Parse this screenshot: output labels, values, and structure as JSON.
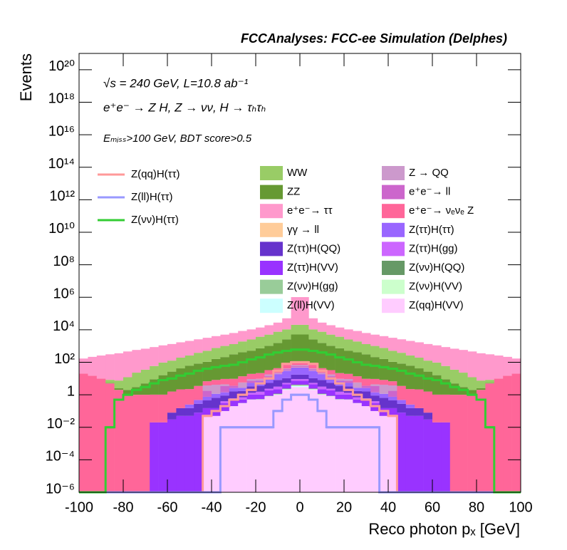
{
  "chart_data": {
    "type": "stacked_histogram",
    "title": "FCCAnalyses: FCC-ee Simulation (Delphes)",
    "annotations": [
      "√s = 240 GeV, L=10.8 ab⁻¹",
      "e⁺e⁻ → Z H, Z → νν, H → τₕτₕ",
      "Eₘᵢₛₛ>100 GeV, BDT score>0.5"
    ],
    "x_label": "Reco photon pₓ [GeV]",
    "y_label": "Events",
    "log_y": true,
    "stacked": true,
    "xlim": [
      -100,
      100
    ],
    "ylim": [
      1e-06,
      1e+21
    ],
    "xticks": [
      -100,
      -80,
      -60,
      -40,
      -20,
      0,
      20,
      40,
      60,
      80,
      100
    ],
    "yticks": [
      {
        "value": 1e-06,
        "label": "10⁻⁶"
      },
      {
        "value": 0.0001,
        "label": "10⁻⁴"
      },
      {
        "value": 0.01,
        "label": "10⁻²"
      },
      1,
      {
        "value": 100,
        "label": "10²"
      },
      {
        "value": 10000,
        "label": "10⁴"
      },
      {
        "value": 1000000,
        "label": "10⁶"
      },
      {
        "value": 100000000.0,
        "label": "10⁸"
      },
      {
        "value": 10000000000.0,
        "label": "10¹⁰"
      },
      {
        "value": 1000000000000.0,
        "label": "10¹²"
      },
      {
        "value": 100000000000000.0,
        "label": "10¹⁴"
      },
      {
        "value": 1e+16,
        "label": "10¹⁶"
      },
      {
        "value": 1e+18,
        "label": "10¹⁸"
      },
      {
        "value": 1e+20,
        "label": "10²⁰"
      }
    ],
    "bins": [
      -100,
      -96,
      -92,
      -88,
      -84,
      -80,
      -76,
      -72,
      -68,
      -64,
      -60,
      -56,
      -52,
      -48,
      -44,
      -40,
      -36,
      -32,
      -28,
      -24,
      -20,
      -16,
      -12,
      -8,
      -4,
      0,
      4,
      8,
      12,
      16,
      20,
      24,
      28,
      32,
      36,
      40,
      44,
      48,
      52,
      56,
      60,
      64,
      68,
      72,
      76,
      80,
      84,
      88,
      92,
      96,
      100
    ],
    "series": [
      {
        "name": "Z(qq)H(VV)",
        "color": "#ffccff",
        "values": [
          0,
          0,
          0,
          0,
          0,
          0,
          0,
          0,
          0,
          0,
          0,
          0,
          0,
          0,
          0.05,
          0.05,
          0.1,
          0.2,
          0.3,
          0.5,
          0.5,
          0.8,
          1,
          2,
          3,
          3,
          2,
          1,
          0.8,
          0.5,
          0.5,
          0.3,
          0.2,
          0.1,
          0.05,
          0.05,
          0,
          0,
          0,
          0,
          0,
          0,
          0,
          0,
          0,
          0,
          0,
          0,
          0,
          0
        ]
      },
      {
        "name": "Z(ll)H(VV)",
        "color": "#ccffff",
        "values": [
          0,
          0,
          0,
          0,
          0,
          0,
          0,
          0,
          0,
          0,
          0,
          0,
          0,
          0,
          0,
          0,
          0,
          0,
          0,
          0,
          0,
          0,
          0.02,
          0.1,
          0.5,
          0.5,
          0.1,
          0.02,
          0,
          0,
          0,
          0,
          0,
          0,
          0,
          0,
          0,
          0,
          0,
          0,
          0,
          0,
          0,
          0,
          0,
          0,
          0,
          0,
          0,
          0
        ]
      },
      {
        "name": "Z(νν)H(VV)",
        "color": "#ccffcc",
        "values": [
          0,
          0,
          0,
          0,
          0,
          0,
          0,
          0,
          0,
          0,
          0,
          0,
          0,
          0,
          0,
          0,
          0,
          0,
          0.01,
          0.01,
          0.02,
          0.02,
          0.05,
          0.1,
          0.2,
          0.2,
          0.1,
          0.05,
          0.02,
          0.02,
          0.01,
          0.01,
          0,
          0,
          0,
          0,
          0,
          0,
          0,
          0,
          0,
          0,
          0,
          0,
          0,
          0,
          0,
          0,
          0,
          0
        ]
      },
      {
        "name": "Z(νν)H(gg)",
        "color": "#99cc99",
        "values": [
          0,
          0,
          0,
          0,
          0,
          0,
          0,
          0,
          0,
          0,
          0,
          0,
          0,
          0,
          0,
          0,
          0,
          0,
          0,
          0.01,
          0.01,
          0.02,
          0.05,
          0.1,
          0.2,
          0.2,
          0.1,
          0.05,
          0.02,
          0.01,
          0.01,
          0,
          0,
          0,
          0,
          0,
          0,
          0,
          0,
          0,
          0,
          0,
          0,
          0,
          0,
          0,
          0,
          0,
          0,
          0
        ]
      },
      {
        "name": "Z(νν)H(QQ)",
        "color": "#669966",
        "values": [
          0,
          0,
          0,
          0,
          0,
          0,
          0,
          0,
          0,
          0,
          0,
          0,
          0,
          0,
          0,
          0,
          0,
          0,
          0,
          0,
          0.01,
          0.02,
          0.05,
          0.1,
          0.3,
          0.3,
          0.1,
          0.05,
          0.02,
          0.01,
          0,
          0,
          0,
          0,
          0,
          0,
          0,
          0,
          0,
          0,
          0,
          0,
          0,
          0,
          0,
          0,
          0,
          0,
          0,
          0
        ]
      },
      {
        "name": "Z(ττ)H(VV)",
        "color": "#9933ff",
        "values": [
          0,
          0,
          0,
          0,
          0,
          0,
          0,
          0,
          0.02,
          0.02,
          0.03,
          0.05,
          0.05,
          0.08,
          0.1,
          0.1,
          0.2,
          0.3,
          0.2,
          0.5,
          0.5,
          1,
          1,
          2,
          3,
          3,
          2,
          1,
          1,
          0.5,
          0.5,
          0.2,
          0.3,
          0.2,
          0.1,
          0.1,
          0.08,
          0.05,
          0.05,
          0.03,
          0.02,
          0.02,
          0,
          0,
          0,
          0,
          0,
          0,
          0,
          0
        ]
      },
      {
        "name": "Z(ττ)H(gg)",
        "color": "#cc66ff",
        "values": [
          0,
          0,
          0,
          0,
          0,
          0,
          0,
          0,
          0,
          0,
          0,
          0,
          0,
          0,
          0,
          0,
          0.1,
          0.1,
          0.2,
          0.3,
          0.5,
          0.5,
          1,
          1,
          2,
          2,
          1,
          1,
          0.5,
          0.5,
          0.3,
          0.2,
          0.1,
          0.1,
          0,
          0,
          0,
          0,
          0,
          0,
          0,
          0,
          0,
          0,
          0,
          0,
          0,
          0,
          0,
          0
        ]
      },
      {
        "name": "Z(ττ)H(QQ)",
        "color": "#6633cc",
        "values": [
          0,
          0,
          0,
          0,
          0,
          0,
          0,
          0,
          0,
          0,
          0.05,
          0.1,
          0.1,
          0.2,
          0.3,
          0.5,
          0.5,
          1,
          1,
          2,
          2,
          3,
          5,
          5,
          8,
          8,
          5,
          5,
          3,
          2,
          2,
          1,
          1,
          0.5,
          0.5,
          0.3,
          0.2,
          0.1,
          0.1,
          0.05,
          0,
          0,
          0,
          0,
          0,
          0,
          0,
          0,
          0,
          0
        ]
      },
      {
        "name": "Z(ττ)H(ττ)",
        "color": "#9966ff",
        "values": [
          0,
          0,
          0,
          0,
          0,
          0,
          0,
          0,
          0,
          0,
          0,
          0,
          0.1,
          0.2,
          0.3,
          0.5,
          0.5,
          1,
          1,
          2,
          3,
          5,
          10,
          20,
          30,
          30,
          20,
          10,
          5,
          3,
          2,
          1,
          1,
          0.5,
          0.5,
          0.3,
          0.2,
          0.1,
          0,
          0,
          0,
          0,
          0,
          0,
          0,
          0,
          0,
          0,
          0,
          0
        ]
      },
      {
        "name": "γγ → ll",
        "color": "#ffcc99",
        "values": [
          0,
          0,
          0,
          0,
          0,
          0,
          0,
          0,
          0,
          0,
          0,
          0,
          0,
          0,
          0,
          0,
          0,
          0,
          0,
          0,
          0,
          0.5,
          0,
          1,
          2,
          2,
          1,
          0,
          0.5,
          0,
          0,
          0,
          0,
          0,
          0,
          0,
          0,
          0,
          0,
          0,
          0,
          0,
          0,
          0,
          0,
          0,
          0,
          0,
          0,
          0
        ]
      },
      {
        "name": "e⁺e⁻→ ll",
        "color": "#cc66cc",
        "values": [
          0,
          0,
          0,
          0,
          0,
          0,
          0,
          0,
          0,
          0,
          0,
          0,
          0,
          0,
          1,
          0,
          2,
          1,
          0,
          2,
          1,
          3,
          2,
          5,
          8,
          8,
          5,
          2,
          3,
          1,
          2,
          0,
          1,
          2,
          0,
          1,
          0,
          0,
          0,
          0,
          0,
          0,
          0,
          0,
          0,
          0,
          0,
          0,
          0,
          0
        ]
      },
      {
        "name": "Z → QQ",
        "color": "#cc99cc",
        "values": [
          0,
          0,
          0,
          0,
          0,
          0,
          0,
          0,
          0,
          0,
          0,
          0,
          0,
          0,
          2,
          3,
          1,
          0,
          3,
          2,
          2,
          4,
          3,
          5,
          10,
          10,
          5,
          3,
          4,
          2,
          2,
          3,
          0,
          1,
          3,
          2,
          0,
          0,
          0,
          0,
          0,
          0,
          0,
          0,
          0,
          0,
          0,
          0,
          0,
          0
        ]
      },
      {
        "name": "e⁺e⁻→ νₑνₑ Z",
        "color": "#ff6699",
        "values": [
          20,
          15,
          10,
          5,
          2,
          1,
          1,
          1,
          1,
          1,
          1.5,
          2,
          2,
          3,
          3,
          4,
          5,
          6,
          8,
          10,
          12,
          15,
          20,
          30,
          50,
          50,
          30,
          20,
          15,
          12,
          10,
          8,
          6,
          5,
          4,
          3,
          3,
          2,
          2,
          1.5,
          1,
          1,
          1,
          1,
          1,
          2,
          5,
          10,
          15,
          20
        ]
      },
      {
        "name": "ZZ",
        "color": "#669933",
        "values": [
          0,
          0,
          0,
          0.3,
          0.5,
          1,
          2,
          4,
          8,
          15,
          25,
          40,
          60,
          80,
          100,
          150,
          200,
          300,
          400,
          500,
          700,
          1000,
          1500,
          2500,
          5000,
          5000,
          2500,
          1500,
          1000,
          700,
          500,
          400,
          300,
          200,
          150,
          100,
          80,
          60,
          40,
          25,
          15,
          8,
          4,
          2,
          1,
          0.5,
          0.3,
          0,
          0,
          0
        ]
      },
      {
        "name": "WW",
        "color": "#99cc66",
        "values": [
          0,
          0,
          0,
          3,
          5,
          10,
          20,
          30,
          50,
          80,
          100,
          150,
          200,
          300,
          400,
          600,
          800,
          1000,
          1500,
          2000,
          3000,
          4000,
          6000,
          8000,
          15000,
          15000,
          8000,
          6000,
          4000,
          3000,
          2000,
          1500,
          1000,
          800,
          600,
          400,
          300,
          200,
          150,
          100,
          80,
          50,
          30,
          20,
          10,
          5,
          3,
          0,
          0,
          0
        ]
      },
      {
        "name": "e⁺e⁻→ ττ",
        "color": "#ff99cc",
        "values": [
          150,
          200,
          250,
          300,
          350,
          450,
          550,
          650,
          800,
          1000,
          1200,
          1500,
          1800,
          2200,
          2700,
          3300,
          4000,
          5000,
          6500,
          8000,
          10000,
          14000,
          20000,
          40000,
          1000000,
          1000000,
          40000,
          20000,
          14000,
          10000,
          8000,
          6500,
          5000,
          4000,
          3300,
          2700,
          2200,
          1800,
          1500,
          1200,
          1000,
          800,
          650,
          550,
          450,
          350,
          300,
          250,
          200,
          150
        ]
      }
    ],
    "overlay": [
      {
        "name": "Z(qq)H(ττ)",
        "color": "#ff9999",
        "values": [
          0,
          0,
          0,
          0,
          0,
          0,
          0,
          0,
          0,
          0,
          0,
          0,
          0,
          0,
          0.05,
          0.1,
          0.2,
          0.5,
          1,
          2,
          5,
          10,
          30,
          80,
          100,
          100,
          80,
          30,
          10,
          5,
          2,
          1,
          0.5,
          0.2,
          0.1,
          0.05,
          0,
          0,
          0,
          0,
          0,
          0,
          0,
          0,
          0,
          0,
          0,
          0,
          0,
          0
        ]
      },
      {
        "name": "Z(ll)H(ττ)",
        "color": "#9999ff",
        "values": [
          0,
          0,
          0,
          0,
          0,
          0,
          0,
          0,
          0,
          0,
          0,
          0,
          0,
          0,
          0,
          0,
          0.01,
          0.01,
          0.01,
          0.01,
          0.01,
          0.01,
          0.1,
          0.5,
          1,
          1,
          0.5,
          0.1,
          0.01,
          0.01,
          0.01,
          0.01,
          0.01,
          0.01,
          0,
          0,
          0,
          0,
          0,
          0,
          0,
          0,
          0,
          0,
          0,
          0,
          0,
          0,
          0,
          0
        ]
      },
      {
        "name": "Z(νν)H(ττ)",
        "color": "#33cc33",
        "values": [
          0,
          0,
          0,
          0.01,
          0.5,
          1,
          2,
          3,
          5,
          8,
          10,
          15,
          20,
          30,
          40,
          50,
          60,
          70,
          100,
          150,
          200,
          300,
          400,
          500,
          600,
          600,
          500,
          400,
          300,
          200,
          150,
          100,
          70,
          60,
          50,
          40,
          30,
          20,
          15,
          10,
          8,
          5,
          3,
          2,
          1,
          0.5,
          0.01,
          0,
          0,
          0
        ]
      }
    ]
  }
}
